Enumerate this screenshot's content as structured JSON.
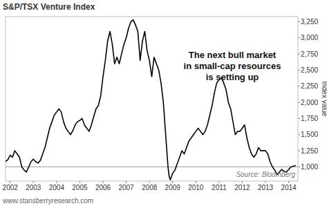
{
  "chart_data": {
    "type": "line",
    "title": "S&P/TSX Venture Index",
    "y_label": "Index value",
    "annotations": [
      "The next bull market",
      "in small-cap resources",
      "is setting up"
    ],
    "source": "Source: Bloomberg",
    "footer": "www.stansberryresearch.com",
    "color": "#000000",
    "grid": false,
    "reference_line": 1000,
    "xlim": [
      2001.8,
      2014.4
    ],
    "xticks": [
      2002,
      2003,
      2004,
      2005,
      2006,
      2007,
      2008,
      2009,
      2010,
      2011,
      2012,
      2013,
      2014
    ],
    "ylim": [
      780,
      3330
    ],
    "yticks": [
      {
        "value": 1000,
        "label": "1,000"
      },
      {
        "value": 1250,
        "label": "1,250"
      },
      {
        "value": 1500,
        "label": "1,500"
      },
      {
        "value": 1750,
        "label": "1,750"
      },
      {
        "value": 2000,
        "label": "2,000"
      },
      {
        "value": 2250,
        "label": "2,250"
      },
      {
        "value": 2500,
        "label": "2,500"
      },
      {
        "value": 2750,
        "label": "2,750"
      },
      {
        "value": 3000,
        "label": "3,000"
      },
      {
        "value": 3250,
        "label": "3,250"
      }
    ],
    "x": [
      2001.8,
      2001.9,
      2002.0,
      2002.1,
      2002.2,
      2002.3,
      2002.4,
      2002.5,
      2002.6,
      2002.7,
      2002.8,
      2002.9,
      2003.0,
      2003.1,
      2003.2,
      2003.3,
      2003.4,
      2003.5,
      2003.6,
      2003.7,
      2003.8,
      2003.9,
      2004.0,
      2004.1,
      2004.2,
      2004.3,
      2004.4,
      2004.5,
      2004.6,
      2004.7,
      2004.8,
      2004.9,
      2005.0,
      2005.1,
      2005.2,
      2005.3,
      2005.4,
      2005.5,
      2005.6,
      2005.7,
      2005.8,
      2005.9,
      2006.0,
      2006.1,
      2006.2,
      2006.3,
      2006.4,
      2006.5,
      2006.6,
      2006.7,
      2006.8,
      2006.9,
      2007.0,
      2007.1,
      2007.2,
      2007.3,
      2007.4,
      2007.5,
      2007.6,
      2007.7,
      2007.8,
      2007.9,
      2008.0,
      2008.1,
      2008.2,
      2008.3,
      2008.4,
      2008.5,
      2008.6,
      2008.7,
      2008.8,
      2008.85,
      2008.9,
      2009.0,
      2009.1,
      2009.2,
      2009.3,
      2009.4,
      2009.5,
      2009.6,
      2009.7,
      2009.8,
      2009.9,
      2010.0,
      2010.1,
      2010.2,
      2010.3,
      2010.4,
      2010.5,
      2010.6,
      2010.7,
      2010.8,
      2010.9,
      2011.0,
      2011.1,
      2011.2,
      2011.3,
      2011.4,
      2011.5,
      2011.6,
      2011.7,
      2011.8,
      2011.9,
      2012.0,
      2012.1,
      2012.2,
      2012.3,
      2012.4,
      2012.5,
      2012.6,
      2012.7,
      2012.8,
      2012.9,
      2013.0,
      2013.1,
      2013.2,
      2013.3,
      2013.4,
      2013.5,
      2013.6,
      2013.7,
      2013.8,
      2013.9,
      2014.0,
      2014.1,
      2014.2,
      2014.3
    ],
    "values": [
      1080,
      1110,
      1180,
      1150,
      1250,
      1200,
      1150,
      1000,
      950,
      920,
      1000,
      1080,
      1120,
      1080,
      1060,
      1100,
      1200,
      1300,
      1450,
      1600,
      1700,
      1800,
      1850,
      1900,
      1850,
      1700,
      1600,
      1550,
      1500,
      1560,
      1650,
      1700,
      1720,
      1750,
      1650,
      1600,
      1550,
      1650,
      1780,
      1900,
      1950,
      2100,
      2400,
      2650,
      2950,
      3100,
      2900,
      2600,
      2700,
      2600,
      2750,
      2900,
      3000,
      3150,
      3250,
      3280,
      3200,
      3100,
      2650,
      2950,
      3100,
      2800,
      2650,
      2400,
      2700,
      2600,
      2500,
      2300,
      2000,
      1500,
      1000,
      850,
      800,
      900,
      950,
      1050,
      1150,
      1250,
      1200,
      1300,
      1400,
      1450,
      1500,
      1550,
      1600,
      1550,
      1500,
      1550,
      1650,
      1800,
      1950,
      2150,
      2300,
      2350,
      2380,
      2300,
      2200,
      2000,
      1900,
      1700,
      1500,
      1550,
      1550,
      1600,
      1650,
      1450,
      1300,
      1200,
      1150,
      1200,
      1300,
      1250,
      1250,
      1250,
      1200,
      1080,
      1000,
      950,
      880,
      920,
      960,
      930,
      920,
      960,
      1000,
      1010,
      1020
    ]
  }
}
